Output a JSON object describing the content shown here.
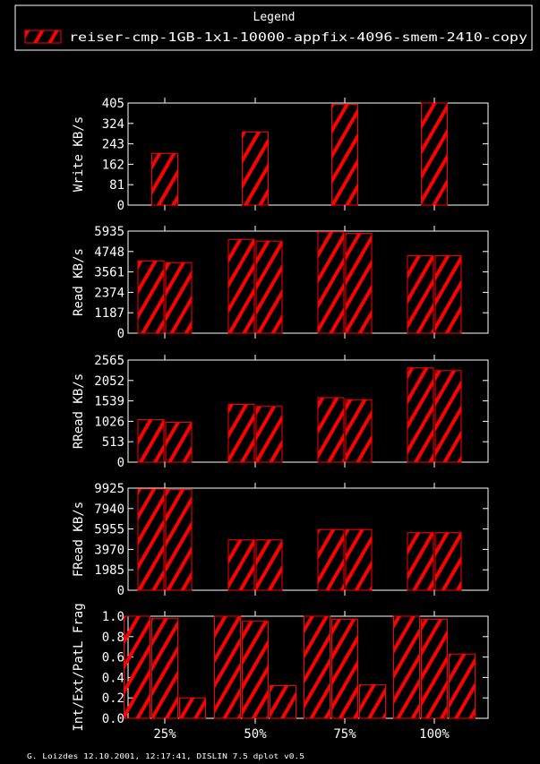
{
  "legend": {
    "title": "Legend",
    "entries": [
      "reiser-cmp-1GB-1x1-10000-appfix-4096-smem-2410-copy"
    ]
  },
  "footer": "G. Loizdes 12.10.2001, 12:17:41, DISLIN 7.5 dplot v0.5",
  "colors": {
    "bar": "#ff0000",
    "axis": "#ffffff",
    "background": "#000000"
  },
  "chart_data": [
    {
      "type": "bar",
      "ylabel": "Write KB/s",
      "ylim": [
        0,
        405
      ],
      "yticks": [
        "0",
        "81",
        "162",
        "243",
        "324",
        "405"
      ],
      "categories": [
        "25%",
        "50%",
        "75%",
        "100%"
      ],
      "series": [
        {
          "values": [
            205,
            290,
            400,
            405
          ]
        }
      ]
    },
    {
      "type": "bar",
      "ylabel": "Read KB/s",
      "ylim": [
        0,
        5935
      ],
      "yticks": [
        "0",
        "1187",
        "2374",
        "3561",
        "4748",
        "5935"
      ],
      "categories": [
        "25%",
        "50%",
        "75%",
        "100%"
      ],
      "series": [
        {
          "values": [
            4200,
            5450,
            5900,
            4500
          ]
        },
        {
          "values": [
            4100,
            5350,
            5800,
            4500
          ]
        }
      ]
    },
    {
      "type": "bar",
      "ylabel": "RRead KB/s",
      "ylim": [
        0,
        2565
      ],
      "yticks": [
        "0",
        "513",
        "1026",
        "1539",
        "2052",
        "2565"
      ],
      "categories": [
        "25%",
        "50%",
        "75%",
        "100%"
      ],
      "series": [
        {
          "values": [
            1070,
            1450,
            1620,
            2370
          ]
        },
        {
          "values": [
            1000,
            1400,
            1570,
            2300
          ]
        }
      ]
    },
    {
      "type": "bar",
      "ylabel": "FRead KB/s",
      "ylim": [
        0,
        9925
      ],
      "yticks": [
        "0",
        "1985",
        "3970",
        "5955",
        "7940",
        "9925"
      ],
      "categories": [
        "25%",
        "50%",
        "75%",
        "100%"
      ],
      "series": [
        {
          "values": [
            9850,
            4900,
            5900,
            5600
          ]
        },
        {
          "values": [
            9800,
            4900,
            5900,
            5600
          ]
        }
      ]
    },
    {
      "type": "bar",
      "ylabel": "Int/Ext/PatL Frag",
      "ylim": [
        0,
        1.0
      ],
      "yticks": [
        "0.0",
        "0.2",
        "0.4",
        "0.6",
        "0.8",
        "1.0"
      ],
      "categories": [
        "25%",
        "50%",
        "75%",
        "100%"
      ],
      "series": [
        {
          "values": [
            1.0,
            1.0,
            1.0,
            1.0
          ]
        },
        {
          "values": [
            0.98,
            0.95,
            0.97,
            0.97
          ]
        },
        {
          "values": [
            0.2,
            0.32,
            0.33,
            0.63
          ]
        }
      ]
    }
  ]
}
